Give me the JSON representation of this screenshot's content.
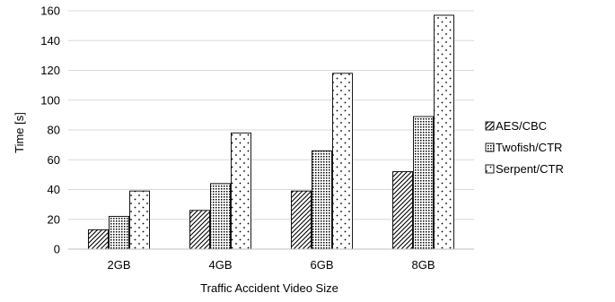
{
  "chart_data": {
    "type": "bar",
    "title": "",
    "xlabel": "Traffic Accident Video Size",
    "ylabel": "Time [s]",
    "categories": [
      "2GB",
      "4GB",
      "6GB",
      "8GB"
    ],
    "series": [
      {
        "name": "AES/CBC",
        "values": [
          13,
          26,
          39,
          52
        ],
        "pattern": "diagonal-hatch"
      },
      {
        "name": "Twofish/CTR",
        "values": [
          22,
          44,
          66,
          89
        ],
        "pattern": "dense-dots"
      },
      {
        "name": "Serpent/CTR",
        "values": [
          39,
          78,
          118,
          157
        ],
        "pattern": "sparse-dots"
      }
    ],
    "ylim": [
      0,
      160
    ],
    "yticks": [
      0,
      20,
      40,
      60,
      80,
      100,
      120,
      140,
      160
    ],
    "grid": true,
    "legend_position": "right"
  }
}
